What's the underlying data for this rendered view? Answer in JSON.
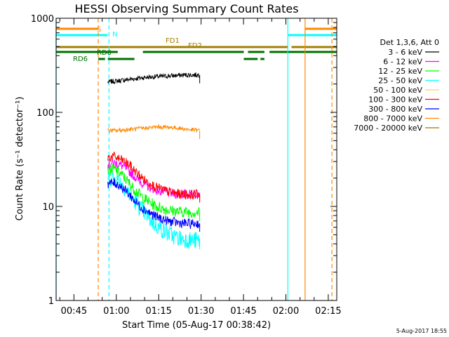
{
  "chart_data": {
    "type": "line",
    "title": "HESSI Observing Summary Count Rates",
    "xlabel": "Start Time (05-Aug-17 00:38:42)",
    "ylabel": "Count Rate (s⁻¹ detector⁻¹)",
    "y_scale": "log",
    "ylim": [
      1,
      1000
    ],
    "xlim_minutes": [
      38.7,
      138.0
    ],
    "x_ticks": [
      {
        "t": 45,
        "label": "00:45"
      },
      {
        "t": 60,
        "label": "01:00"
      },
      {
        "t": 75,
        "label": "01:15"
      },
      {
        "t": 90,
        "label": "01:30"
      },
      {
        "t": 105,
        "label": "01:45"
      },
      {
        "t": 120,
        "label": "02:00"
      },
      {
        "t": 135,
        "label": "02:15"
      }
    ],
    "y_ticks": [
      {
        "v": 1,
        "label": "1"
      },
      {
        "v": 10,
        "label": "10"
      },
      {
        "v": 100,
        "label": "100"
      },
      {
        "v": 1000,
        "label": "1000"
      }
    ],
    "legend_title": "Det 1,3,6, Att 0",
    "legend_position": "right",
    "series": [
      {
        "name": "3 - 6 keV",
        "color": "#000000",
        "x": [
          57,
          60,
          65,
          70,
          75,
          80,
          85,
          89.5
        ],
        "values": [
          210,
          215,
          225,
          235,
          240,
          245,
          250,
          250
        ]
      },
      {
        "name": "6 - 12 keV",
        "color": "#ff00ff",
        "x": [
          57,
          59,
          61,
          63,
          65,
          67,
          70,
          74,
          78,
          82,
          86,
          89.5
        ],
        "values": [
          28,
          29,
          28,
          26,
          23,
          20,
          17,
          15,
          14,
          13.5,
          13.5,
          14
        ]
      },
      {
        "name": "12 - 25 keV",
        "color": "#00ff00",
        "x": [
          57,
          59,
          61,
          63,
          65,
          67,
          70,
          74,
          78,
          82,
          86,
          89.5
        ],
        "values": [
          24,
          25,
          23,
          20,
          17,
          14.5,
          12,
          10,
          9.2,
          8.8,
          8.7,
          8.6
        ]
      },
      {
        "name": "25 - 50 keV",
        "color": "#00ffff",
        "x": [
          57,
          59,
          61,
          63,
          65,
          67,
          70,
          74,
          78,
          82,
          86,
          89.5
        ],
        "values": [
          20,
          20,
          18.5,
          16,
          13,
          11,
          8.5,
          6.3,
          5.2,
          4.6,
          4.4,
          4.3
        ]
      },
      {
        "name": "50 - 100 keV",
        "color": "#ffcc66",
        "x": [],
        "values": []
      },
      {
        "name": "100 - 300 keV",
        "color": "#ff0000",
        "x": [
          57,
          59,
          61,
          63,
          65,
          67,
          70,
          74,
          78,
          82,
          86,
          89.5
        ],
        "values": [
          33,
          34,
          32,
          30,
          27,
          23,
          19,
          16,
          14.5,
          13.5,
          13.3,
          13.5
        ]
      },
      {
        "name": "300 - 800 keV",
        "color": "#0000ff",
        "x": [
          57,
          59,
          61,
          63,
          65,
          67,
          70,
          74,
          78,
          82,
          86,
          89.5
        ],
        "values": [
          17.5,
          17.8,
          17,
          15,
          13,
          11,
          9.2,
          7.8,
          7,
          6.7,
          6.5,
          6.6
        ]
      },
      {
        "name": "800 - 7000 keV",
        "color": "#ff8800",
        "x": [
          57,
          60,
          65,
          70,
          75,
          80,
          85,
          89.5
        ],
        "values": [
          64,
          64,
          66,
          68,
          70,
          69,
          66,
          64
        ]
      },
      {
        "name": "7000 - 20000 keV",
        "color": "#a07800",
        "x": [],
        "values": []
      }
    ],
    "annotations": [
      {
        "label": "S",
        "color": "#ff8800"
      },
      {
        "label": "N",
        "color": "#00ffff"
      },
      {
        "label": "FD1",
        "color": "#a08000"
      },
      {
        "label": "FD2",
        "color": "#a08000"
      },
      {
        "label": "RD0",
        "color": "#007000"
      },
      {
        "label": "RD6",
        "color": "#007000"
      }
    ],
    "flag_bars": [
      {
        "color": "#ff8800",
        "segments": [
          [
            38.7,
            53.6
          ],
          [
            126.8,
            138
          ]
        ]
      },
      {
        "color": "#00ffff",
        "segments": [
          [
            38.7,
            56.9
          ],
          [
            120.7,
            138
          ]
        ]
      },
      {
        "color": "#a08000",
        "segments": [
          [
            38.7,
            120.7
          ],
          [
            122.0,
            138
          ]
        ]
      },
      {
        "color": "#007000",
        "segments": [
          [
            38.7,
            60.5
          ],
          [
            69.4,
            105.1
          ],
          [
            106.6,
            112.4
          ],
          [
            114.2,
            138
          ]
        ]
      },
      {
        "color": "#007000",
        "segments": [
          [
            53.6,
            56.0
          ],
          [
            57.0,
            66.4
          ],
          [
            105.1,
            110.0
          ],
          [
            111.0,
            112.4
          ]
        ]
      }
    ],
    "vertical_lines": [
      {
        "t": 38.7,
        "color": "#00ffff",
        "style": "solid"
      },
      {
        "t": 53.6,
        "color": "#ff8800",
        "style": "dashed"
      },
      {
        "t": 57.4,
        "color": "#00ffff",
        "style": "dashed"
      },
      {
        "t": 120.7,
        "color": "#00ffff",
        "style": "solid"
      },
      {
        "t": 126.8,
        "color": "#ff8800",
        "style": "solid"
      },
      {
        "t": 136.3,
        "color": "#ff8800",
        "style": "dashed"
      }
    ],
    "grid": false
  },
  "footer_stamp": "5-Aug-2017 18:55"
}
